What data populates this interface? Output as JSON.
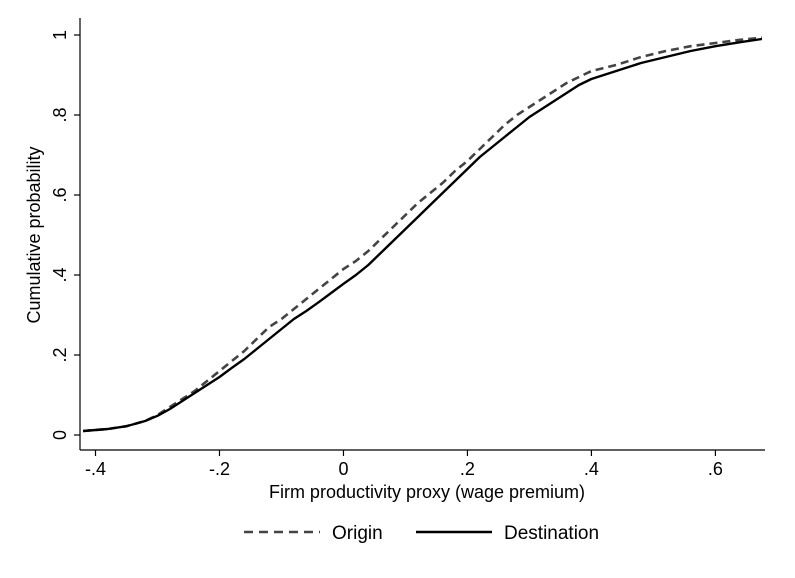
{
  "chart_data": {
    "type": "line",
    "xlabel": "Firm productivity proxy (wage premium)",
    "ylabel": "Cumulative probability",
    "xlim": [
      -0.425,
      0.68
    ],
    "ylim": [
      0,
      1
    ],
    "x_ticks": [
      -0.4,
      -0.2,
      0,
      0.2,
      0.4,
      0.6
    ],
    "x_tick_labels": [
      "-.4",
      "-.2",
      "0",
      ".2",
      ".4",
      ".6"
    ],
    "y_ticks": [
      0,
      0.2,
      0.4,
      0.6,
      0.8,
      1
    ],
    "y_tick_labels": [
      "0",
      ".2",
      ".4",
      ".6",
      ".8",
      "1"
    ],
    "grid": false,
    "legend_position": "bottom",
    "series": [
      {
        "name": "Origin",
        "style": "dashed",
        "color": "#444444",
        "x": [
          -0.42,
          -0.38,
          -0.35,
          -0.32,
          -0.3,
          -0.28,
          -0.26,
          -0.24,
          -0.22,
          -0.2,
          -0.18,
          -0.16,
          -0.14,
          -0.12,
          -0.1,
          -0.08,
          -0.06,
          -0.04,
          -0.02,
          0.0,
          0.02,
          0.04,
          0.06,
          0.08,
          0.1,
          0.12,
          0.14,
          0.16,
          0.18,
          0.2,
          0.22,
          0.24,
          0.26,
          0.28,
          0.3,
          0.32,
          0.34,
          0.36,
          0.38,
          0.4,
          0.44,
          0.48,
          0.52,
          0.56,
          0.6,
          0.64,
          0.675
        ],
        "y": [
          0.01,
          0.015,
          0.022,
          0.035,
          0.05,
          0.07,
          0.09,
          0.11,
          0.135,
          0.16,
          0.185,
          0.21,
          0.24,
          0.27,
          0.29,
          0.315,
          0.34,
          0.365,
          0.39,
          0.415,
          0.435,
          0.46,
          0.49,
          0.52,
          0.55,
          0.58,
          0.605,
          0.63,
          0.66,
          0.685,
          0.715,
          0.745,
          0.775,
          0.8,
          0.82,
          0.84,
          0.86,
          0.88,
          0.895,
          0.91,
          0.925,
          0.945,
          0.96,
          0.972,
          0.98,
          0.988,
          0.993
        ]
      },
      {
        "name": "Destination",
        "style": "solid",
        "color": "#000000",
        "x": [
          -0.42,
          -0.38,
          -0.35,
          -0.32,
          -0.3,
          -0.28,
          -0.26,
          -0.24,
          -0.22,
          -0.2,
          -0.18,
          -0.16,
          -0.14,
          -0.12,
          -0.1,
          -0.08,
          -0.06,
          -0.04,
          -0.02,
          0.0,
          0.02,
          0.04,
          0.06,
          0.08,
          0.1,
          0.12,
          0.14,
          0.16,
          0.18,
          0.2,
          0.22,
          0.24,
          0.26,
          0.28,
          0.3,
          0.32,
          0.34,
          0.36,
          0.38,
          0.4,
          0.44,
          0.48,
          0.52,
          0.56,
          0.6,
          0.64,
          0.675
        ],
        "y": [
          0.01,
          0.015,
          0.022,
          0.035,
          0.048,
          0.065,
          0.085,
          0.105,
          0.125,
          0.145,
          0.168,
          0.19,
          0.215,
          0.24,
          0.265,
          0.29,
          0.31,
          0.332,
          0.355,
          0.378,
          0.4,
          0.425,
          0.455,
          0.485,
          0.515,
          0.545,
          0.575,
          0.605,
          0.635,
          0.665,
          0.695,
          0.72,
          0.745,
          0.77,
          0.795,
          0.815,
          0.835,
          0.855,
          0.875,
          0.89,
          0.91,
          0.93,
          0.945,
          0.96,
          0.972,
          0.982,
          0.99
        ]
      }
    ]
  }
}
